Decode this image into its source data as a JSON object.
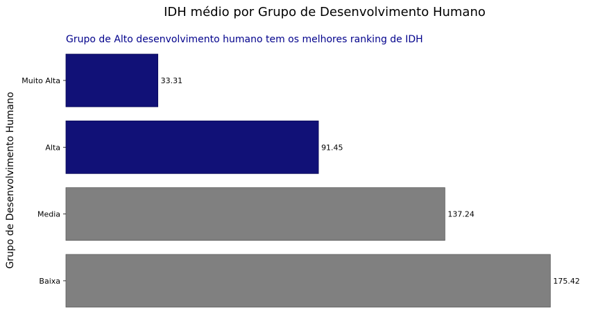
{
  "chart_data": {
    "type": "bar",
    "orientation": "horizontal",
    "title": "IDH médio por Grupo de Desenvolvimento Humano",
    "subtitle": "Grupo de Alto desenvolvimento humano tem os melhores  ranking de IDH",
    "ylabel": "Grupo de Desenvolvimento Humano",
    "xlabel": "",
    "categories": [
      "Muito Alta",
      "Alta",
      "Media",
      "Baixa"
    ],
    "values": [
      33.31,
      91.45,
      137.24,
      175.42
    ],
    "data_labels": [
      "33.31",
      "91.45",
      "137.24",
      "175.42"
    ],
    "highlighted": [
      true,
      true,
      false,
      false
    ],
    "xlim": [
      0,
      180
    ],
    "grid": false,
    "x_axis_visible": false
  },
  "colors": {
    "highlight": "#111177",
    "muted": "#808080",
    "subtitle": "#00008b",
    "text": "#000000"
  }
}
